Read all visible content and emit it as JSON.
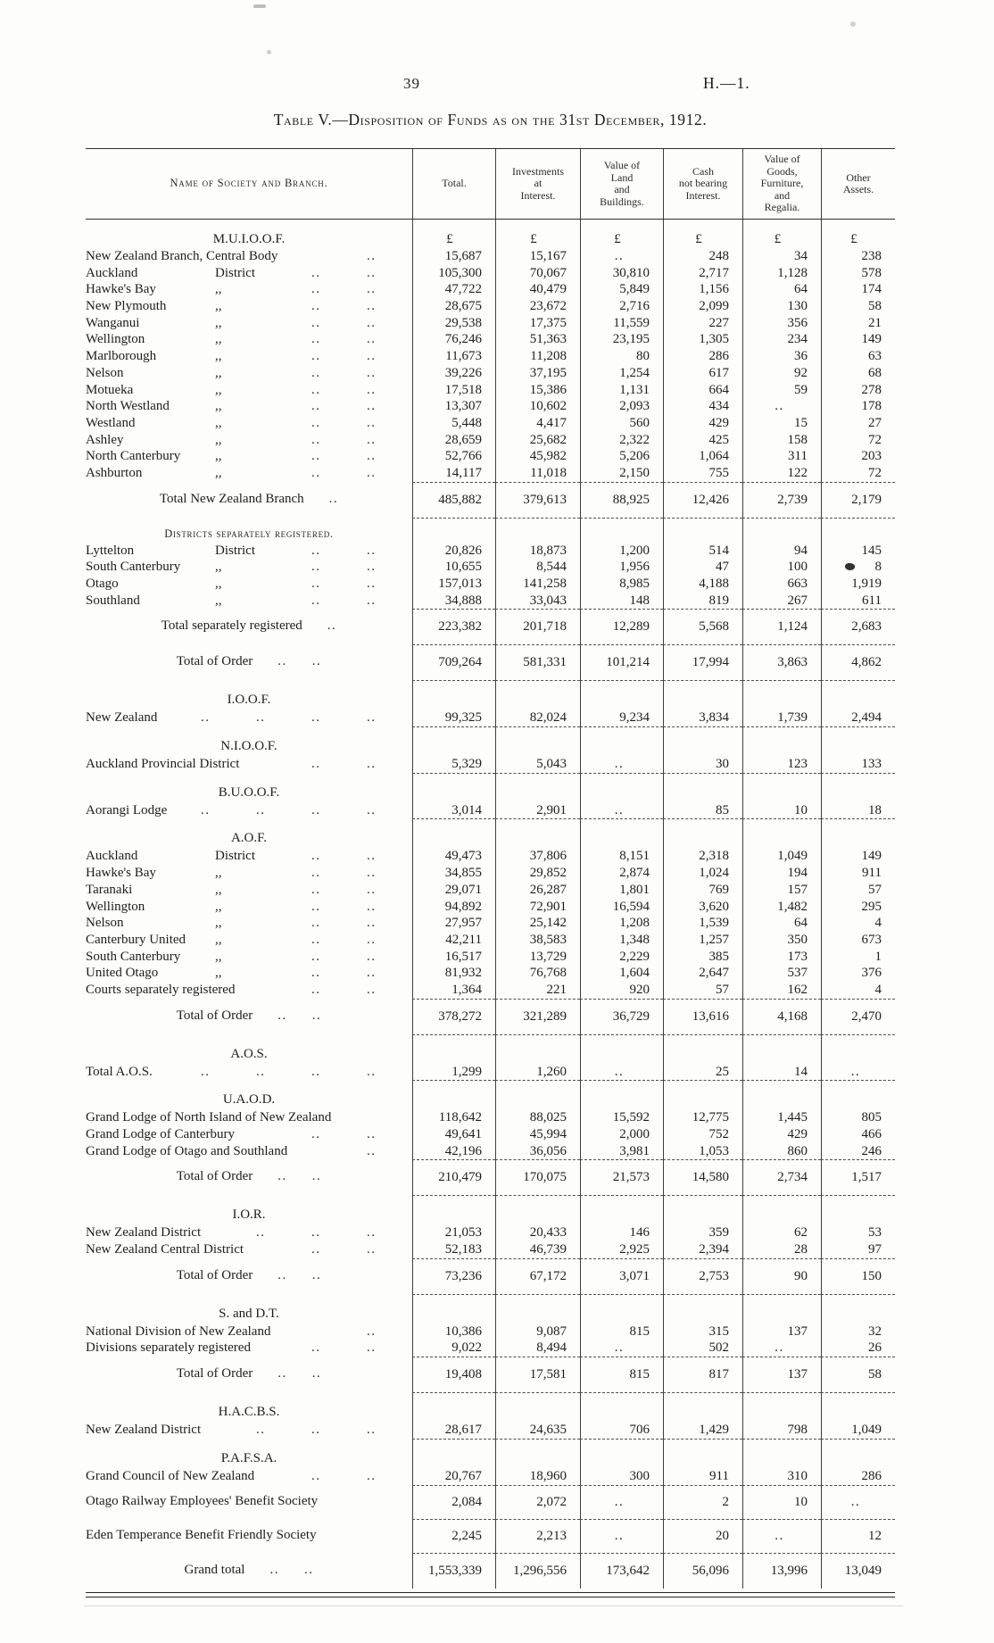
{
  "header": {
    "page_number": "39",
    "doc_ref": "H.—1."
  },
  "title": "Table V.—Disposition of Funds as on the 31st December, 1912.",
  "table": {
    "name_header": "Name of Society and Branch.",
    "columns": [
      "Total.",
      "Investments\nat\nInterest.",
      "Value of\nLand\nand\nBuildings.",
      "Cash\nnot bearing\nInterest.",
      "Value of\nGoods,\nFurniture,\nand\nRegalia.",
      "Other\nAssets."
    ],
    "currency_symbol": "£",
    "dots_placeholder": "..",
    "rows": [
      {
        "t": "sec",
        "label": "M.U.I.O.O.F.",
        "v": [
          "£",
          "£",
          "£",
          "£",
          "£",
          "£"
        ]
      },
      {
        "t": "d",
        "label": "New Zealand Branch, Central Body",
        "dots": 1,
        "v": [
          "15,687",
          "15,167",
          "..",
          "248",
          "34",
          "238"
        ]
      },
      {
        "t": "d",
        "label": "Auckland",
        "sub": "District",
        "dots": 2,
        "v": [
          "105,300",
          "70,067",
          "30,810",
          "2,717",
          "1,128",
          "578"
        ]
      },
      {
        "t": "d",
        "label": "Hawke's Bay",
        "sub": ",,",
        "dots": 2,
        "v": [
          "47,722",
          "40,479",
          "5,849",
          "1,156",
          "64",
          "174"
        ]
      },
      {
        "t": "d",
        "label": "New Plymouth",
        "sub": ",,",
        "dots": 2,
        "v": [
          "28,675",
          "23,672",
          "2,716",
          "2,099",
          "130",
          "58"
        ]
      },
      {
        "t": "d",
        "label": "Wanganui",
        "sub": ",,",
        "dots": 2,
        "v": [
          "29,538",
          "17,375",
          "11,559",
          "227",
          "356",
          "21"
        ]
      },
      {
        "t": "d",
        "label": "Wellington",
        "sub": ",,",
        "dots": 2,
        "v": [
          "76,246",
          "51,363",
          "23,195",
          "1,305",
          "234",
          "149"
        ]
      },
      {
        "t": "d",
        "label": "Marlborough",
        "sub": ",,",
        "dots": 2,
        "v": [
          "11,673",
          "11,208",
          "80",
          "286",
          "36",
          "63"
        ]
      },
      {
        "t": "d",
        "label": "Nelson",
        "sub": ",,",
        "dots": 2,
        "v": [
          "39,226",
          "37,195",
          "1,254",
          "617",
          "92",
          "68"
        ]
      },
      {
        "t": "d",
        "label": "Motueka",
        "sub": ",,",
        "dots": 2,
        "v": [
          "17,518",
          "15,386",
          "1,131",
          "664",
          "59",
          "278"
        ]
      },
      {
        "t": "d",
        "label": "North Westland",
        "sub": ",,",
        "dots": 2,
        "v": [
          "13,307",
          "10,602",
          "2,093",
          "434",
          "..",
          "178"
        ]
      },
      {
        "t": "d",
        "label": "Westland",
        "sub": ",,",
        "dots": 2,
        "v": [
          "5,448",
          "4,417",
          "560",
          "429",
          "15",
          "27"
        ]
      },
      {
        "t": "d",
        "label": "Ashley",
        "sub": ",,",
        "dots": 2,
        "v": [
          "28,659",
          "25,682",
          "2,322",
          "425",
          "158",
          "72"
        ]
      },
      {
        "t": "d",
        "label": "North Canterbury",
        "sub": ",,",
        "dots": 2,
        "v": [
          "52,766",
          "45,982",
          "5,206",
          "1,064",
          "311",
          "203"
        ]
      },
      {
        "t": "d",
        "label": "Ashburton",
        "sub": ",,",
        "dots": 2,
        "v": [
          "14,117",
          "11,018",
          "2,150",
          "755",
          "122",
          "72"
        ]
      },
      {
        "t": "tot",
        "label": "Total New Zealand Branch",
        "dots": 1,
        "rule": 1,
        "v": [
          "485,882",
          "379,613",
          "88,925",
          "12,426",
          "2,739",
          "2,179"
        ]
      },
      {
        "t": "sub",
        "label": "Districts separately registered.",
        "rule": 1
      },
      {
        "t": "d",
        "label": "Lyttelton",
        "sub": "District",
        "dots": 2,
        "v": [
          "20,826",
          "18,873",
          "1,200",
          "514",
          "94",
          "145"
        ]
      },
      {
        "t": "d",
        "label": "South Canterbury",
        "sub": ",,",
        "dots": 2,
        "blot": 5,
        "v": [
          "10,655",
          "8,544",
          "1,956",
          "47",
          "100",
          "8"
        ]
      },
      {
        "t": "d",
        "label": "Otago",
        "sub": ",,",
        "dots": 2,
        "v": [
          "157,013",
          "141,258",
          "8,985",
          "4,188",
          "663",
          "1,919"
        ]
      },
      {
        "t": "d",
        "label": "Southland",
        "sub": ",,",
        "dots": 2,
        "v": [
          "34,888",
          "33,043",
          "148",
          "819",
          "267",
          "611"
        ]
      },
      {
        "t": "tot",
        "label": "Total separately registered",
        "dots": 1,
        "rule": 1,
        "v": [
          "223,382",
          "201,718",
          "12,289",
          "5,568",
          "1,124",
          "2,683"
        ]
      },
      {
        "t": "tot",
        "label": "Total of Order",
        "dots": 2,
        "rule": 1,
        "v": [
          "709,264",
          "581,331",
          "101,214",
          "17,994",
          "3,863",
          "4,862"
        ]
      },
      {
        "t": "sec",
        "label": "I.O.O.F.",
        "rule": 1
      },
      {
        "t": "d",
        "label": "New Zealand",
        "dots": 4,
        "v": [
          "99,325",
          "82,024",
          "9,234",
          "3,834",
          "1,739",
          "2,494"
        ]
      },
      {
        "t": "sec",
        "label": "N.I.O.O.F.",
        "rule": 1
      },
      {
        "t": "d",
        "label": "Auckland Provincial District",
        "dots": 2,
        "v": [
          "5,329",
          "5,043",
          "..",
          "30",
          "123",
          "133"
        ]
      },
      {
        "t": "sec",
        "label": "B.U.O.O.F.",
        "rule": 1
      },
      {
        "t": "d",
        "label": "Aorangi Lodge",
        "dots": 4,
        "v": [
          "3,014",
          "2,901",
          "..",
          "85",
          "10",
          "18"
        ]
      },
      {
        "t": "sec",
        "label": "A.O.F.",
        "rule": 1
      },
      {
        "t": "d",
        "label": "Auckland",
        "sub": "District",
        "dots": 2,
        "v": [
          "49,473",
          "37,806",
          "8,151",
          "2,318",
          "1,049",
          "149"
        ]
      },
      {
        "t": "d",
        "label": "Hawke's Bay",
        "sub": ",,",
        "dots": 2,
        "v": [
          "34,855",
          "29,852",
          "2,874",
          "1,024",
          "194",
          "911"
        ]
      },
      {
        "t": "d",
        "label": "Taranaki",
        "sub": ",,",
        "dots": 2,
        "v": [
          "29,071",
          "26,287",
          "1,801",
          "769",
          "157",
          "57"
        ]
      },
      {
        "t": "d",
        "label": "Wellington",
        "sub": ",,",
        "dots": 2,
        "v": [
          "94,892",
          "72,901",
          "16,594",
          "3,620",
          "1,482",
          "295"
        ]
      },
      {
        "t": "d",
        "label": "Nelson",
        "sub": ",,",
        "dots": 2,
        "v": [
          "27,957",
          "25,142",
          "1,208",
          "1,539",
          "64",
          "4"
        ]
      },
      {
        "t": "d",
        "label": "Canterbury United",
        "sub": ",,",
        "dots": 2,
        "v": [
          "42,211",
          "38,583",
          "1,348",
          "1,257",
          "350",
          "673"
        ]
      },
      {
        "t": "d",
        "label": "South Canterbury",
        "sub": ",,",
        "dots": 2,
        "v": [
          "16,517",
          "13,729",
          "2,229",
          "385",
          "173",
          "1"
        ]
      },
      {
        "t": "d",
        "label": "United Otago",
        "sub": ",,",
        "dots": 2,
        "v": [
          "81,932",
          "76,768",
          "1,604",
          "2,647",
          "537",
          "376"
        ]
      },
      {
        "t": "d",
        "label": "Courts separately registered",
        "dots": 2,
        "v": [
          "1,364",
          "221",
          "920",
          "57",
          "162",
          "4"
        ]
      },
      {
        "t": "tot",
        "label": "Total of Order",
        "dots": 2,
        "rule": 1,
        "v": [
          "378,272",
          "321,289",
          "36,729",
          "13,616",
          "4,168",
          "2,470"
        ]
      },
      {
        "t": "sec",
        "label": "A.O.S.",
        "rule": 1
      },
      {
        "t": "d",
        "label": "Total A.O.S.",
        "dots": 4,
        "v": [
          "1,299",
          "1,260",
          "..",
          "25",
          "14",
          ".."
        ]
      },
      {
        "t": "sec",
        "label": "U.A.O.D.",
        "rule": 1
      },
      {
        "t": "d",
        "label": "Grand Lodge of North Island of New Zealand",
        "dots": 0,
        "v": [
          "118,642",
          "88,025",
          "15,592",
          "12,775",
          "1,445",
          "805"
        ]
      },
      {
        "t": "d",
        "label": "Grand Lodge of Canterbury",
        "dots": 2,
        "v": [
          "49,641",
          "45,994",
          "2,000",
          "752",
          "429",
          "466"
        ]
      },
      {
        "t": "d",
        "label": "Grand Lodge of Otago and Southland",
        "dots": 1,
        "v": [
          "42,196",
          "36,056",
          "3,981",
          "1,053",
          "860",
          "246"
        ]
      },
      {
        "t": "tot",
        "label": "Total of Order",
        "dots": 2,
        "rule": 1,
        "v": [
          "210,479",
          "170,075",
          "21,573",
          "14,580",
          "2,734",
          "1,517"
        ]
      },
      {
        "t": "sec",
        "label": "I.O.R.",
        "rule": 1
      },
      {
        "t": "d",
        "label": "New Zealand District",
        "dots": 3,
        "v": [
          "21,053",
          "20,433",
          "146",
          "359",
          "62",
          "53"
        ]
      },
      {
        "t": "d",
        "label": "New Zealand Central District",
        "dots": 2,
        "v": [
          "52,183",
          "46,739",
          "2,925",
          "2,394",
          "28",
          "97"
        ]
      },
      {
        "t": "tot",
        "label": "Total of Order",
        "dots": 2,
        "rule": 1,
        "v": [
          "73,236",
          "67,172",
          "3,071",
          "2,753",
          "90",
          "150"
        ]
      },
      {
        "t": "sec",
        "label": "S. and D.T.",
        "rule": 1
      },
      {
        "t": "d",
        "label": "National Division of New Zealand",
        "dots": 1,
        "v": [
          "10,386",
          "9,087",
          "815",
          "315",
          "137",
          "32"
        ]
      },
      {
        "t": "d",
        "label": "Divisions separately registered",
        "dots": 2,
        "v": [
          "9,022",
          "8,494",
          "..",
          "502",
          "..",
          "26"
        ]
      },
      {
        "t": "tot",
        "label": "Total of Order",
        "dots": 2,
        "rule": 1,
        "v": [
          "19,408",
          "17,581",
          "815",
          "817",
          "137",
          "58"
        ]
      },
      {
        "t": "sec",
        "label": "H.A.C.B.S.",
        "rule": 1
      },
      {
        "t": "d",
        "label": "New Zealand District",
        "dots": 3,
        "v": [
          "28,617",
          "24,635",
          "706",
          "1,429",
          "798",
          "1,049"
        ]
      },
      {
        "t": "sec",
        "label": "P.A.F.S.A.",
        "rule": 1
      },
      {
        "t": "d",
        "label": "Grand Council of New Zealand",
        "dots": 2,
        "v": [
          "20,767",
          "18,960",
          "300",
          "911",
          "310",
          "286"
        ]
      },
      {
        "t": "d",
        "label": "Otago Railway Employees' Benefit Society",
        "dots": 0,
        "rule": 1,
        "pad": 1,
        "v": [
          "2,084",
          "2,072",
          "..",
          "2",
          "10",
          ".."
        ]
      },
      {
        "t": "d",
        "label": "Eden Temperance Benefit Friendly Society",
        "dots": 0,
        "rule": 1,
        "pad": 1,
        "v": [
          "2,245",
          "2,213",
          "..",
          "20",
          "..",
          "12"
        ]
      },
      {
        "t": "tot",
        "label": "Grand total",
        "dots": 2,
        "rule": 1,
        "v": [
          "1,553,339",
          "1,296,556",
          "173,642",
          "56,096",
          "13,996",
          "13,049"
        ]
      }
    ]
  }
}
